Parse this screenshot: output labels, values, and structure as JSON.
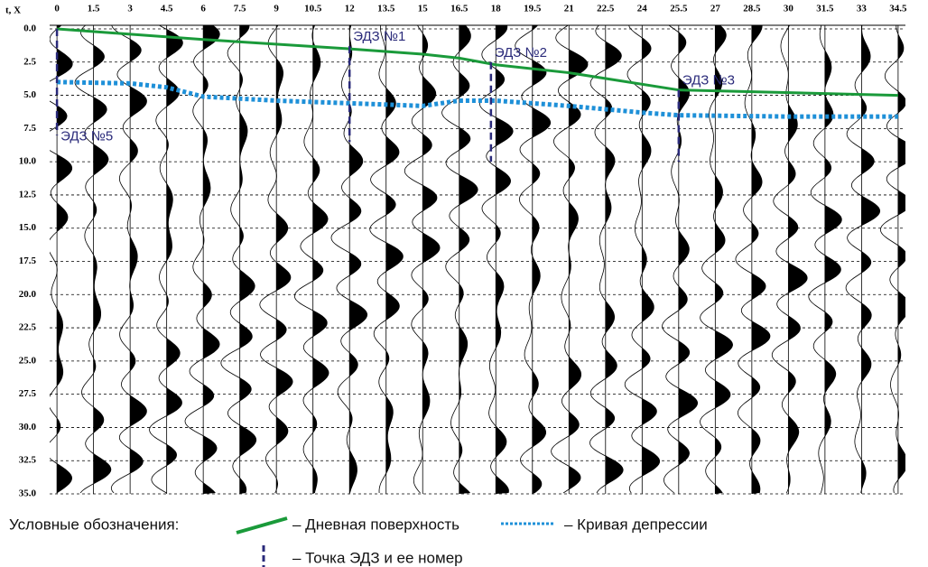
{
  "chart_data": {
    "type": "line",
    "corner_label": "t, X",
    "xlim": [
      -0.3,
      34.8
    ],
    "xticks": [
      0,
      1.5,
      3,
      4.5,
      6,
      7.5,
      9,
      10.5,
      12,
      13.5,
      15,
      16.5,
      18,
      19.5,
      21,
      22.5,
      24,
      25.5,
      27,
      28.5,
      30,
      31.5,
      33,
      34.5
    ],
    "ylim": [
      0,
      35
    ],
    "yticks": [
      {
        "value": 0,
        "label": "0.0"
      },
      2.5,
      {
        "value": 5,
        "label": "5.0"
      },
      7.5,
      {
        "value": 10,
        "label": "10.0"
      },
      12.5,
      {
        "value": 15,
        "label": "15.0"
      },
      17.5,
      {
        "value": 20,
        "label": "20.0"
      },
      22.5,
      {
        "value": 25,
        "label": "25.0"
      },
      27.5,
      {
        "value": 30,
        "label": "30.0"
      },
      32.5,
      {
        "value": 35,
        "label": "35.0"
      }
    ],
    "grid": true,
    "legend_title": "Условные обозначения:",
    "series": [
      {
        "name": "– Дневная поверхность",
        "color": "#1a9a3a",
        "style": "solid",
        "x": [
          0,
          6,
          12,
          15,
          16.5,
          18,
          21,
          25.5,
          34.5
        ],
        "values": [
          0,
          0.8,
          1.5,
          1.9,
          2.2,
          2.7,
          3.3,
          4.6,
          5.0
        ]
      },
      {
        "name": "– Кривая депрессии",
        "color": "#1e90d8",
        "style": "dotted",
        "x": [
          0,
          3,
          4.5,
          6,
          9,
          12,
          15,
          16.5,
          18,
          21,
          24,
          25.5,
          30,
          34.5
        ],
        "values": [
          4.0,
          4.1,
          4.4,
          5.1,
          5.4,
          5.6,
          5.8,
          5.4,
          5.4,
          5.8,
          6.3,
          6.5,
          6.6,
          6.6
        ]
      }
    ],
    "markers_legend": "– Точка ЭДЗ и ее номер",
    "markers": [
      {
        "label": "ЭДЗ №5",
        "x": 0,
        "y": [
          0,
          8.0
        ]
      },
      {
        "label": "ЭДЗ №1",
        "x": 12,
        "y": [
          1.3,
          8.5
        ]
      },
      {
        "label": "ЭДЗ №2",
        "x": 17.8,
        "y": [
          2.5,
          10.0
        ]
      },
      {
        "label": "ЭДЗ №3",
        "x": 25.5,
        "y": [
          4.6,
          10.0
        ]
      }
    ]
  }
}
